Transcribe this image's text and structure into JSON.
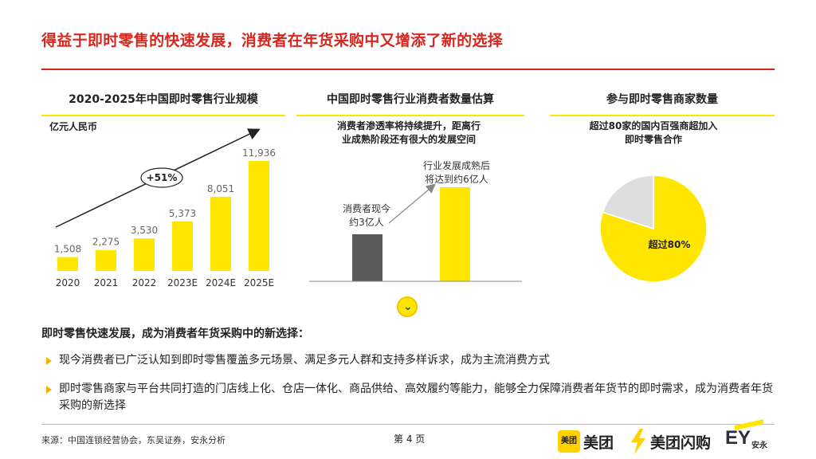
{
  "title": "得益于即时零售的快速发展，消费者在年货采购中又增添了新的选择",
  "panels": {
    "p1": {
      "heading": "2020-2025年中国即时零售行业规模",
      "unit": "亿元人民币",
      "growth_label": "+51%"
    },
    "p2": {
      "heading": "中国即时零售行业消费者数量估算",
      "note_line1": "消费者渗透率将持续提升，距离行",
      "note_line2": "业成熟阶段还有很大的发展空间",
      "current_label_1": "消费者现今",
      "current_label_2": "约3亿人",
      "future_label_1": "行业发展成熟后",
      "future_label_2": "将达到约6亿人"
    },
    "p3": {
      "heading": "参与即时零售商家数量",
      "note_line1": "超过80家的国内百强商超加入",
      "note_line2": "即时零售合作",
      "slice_label": "超过80%"
    }
  },
  "chart_data": [
    {
      "type": "bar",
      "title": "2020-2025年中国即时零售行业规模",
      "ylabel": "亿元人民币",
      "categories": [
        "2020",
        "2021",
        "2022",
        "2023E",
        "2024E",
        "2025E"
      ],
      "values": [
        1508,
        2275,
        3530,
        5373,
        8051,
        11936
      ],
      "value_labels": [
        "1,508",
        "2,275",
        "3,530",
        "5,373",
        "8,051",
        "11,936"
      ],
      "annotation": "+51%",
      "color": "#ffe600"
    },
    {
      "type": "bar",
      "title": "中国即时零售行业消费者数量估算",
      "categories": [
        "消费者现今约3亿人",
        "行业发展成熟后将达到约6亿人"
      ],
      "values": [
        3,
        6
      ],
      "colors": [
        "#5a5a5a",
        "#ffe600"
      ]
    },
    {
      "type": "pie",
      "title": "参与即时零售商家数量",
      "values": [
        80,
        20
      ],
      "slice_label": "超过80%",
      "colors": [
        "#ffe600",
        "#dedede"
      ]
    }
  ],
  "summary": "即时零售快速发展，成为消费者年货采购中的新选择：",
  "bullets": [
    "现今消费者已广泛认知到即时零售覆盖多元场景、满足多元人群和支持多样诉求，成为主流消费方式",
    "即时零售商家与平台共同打造的门店线上化、仓店一体化、商品供给、高效履约等能力，能够全力保障消费者年货节的即时需求，成为消费者年货采购的新选择"
  ],
  "footer": {
    "source": "来源：中国连锁经营协会，东吴证券，安永分析",
    "page": "第 4 页",
    "logo_meituan_box": "美团",
    "logo_meituan": "美团",
    "logo_shangou": "美团闪购",
    "logo_ey": "EY",
    "logo_ey_cn": "安永"
  }
}
